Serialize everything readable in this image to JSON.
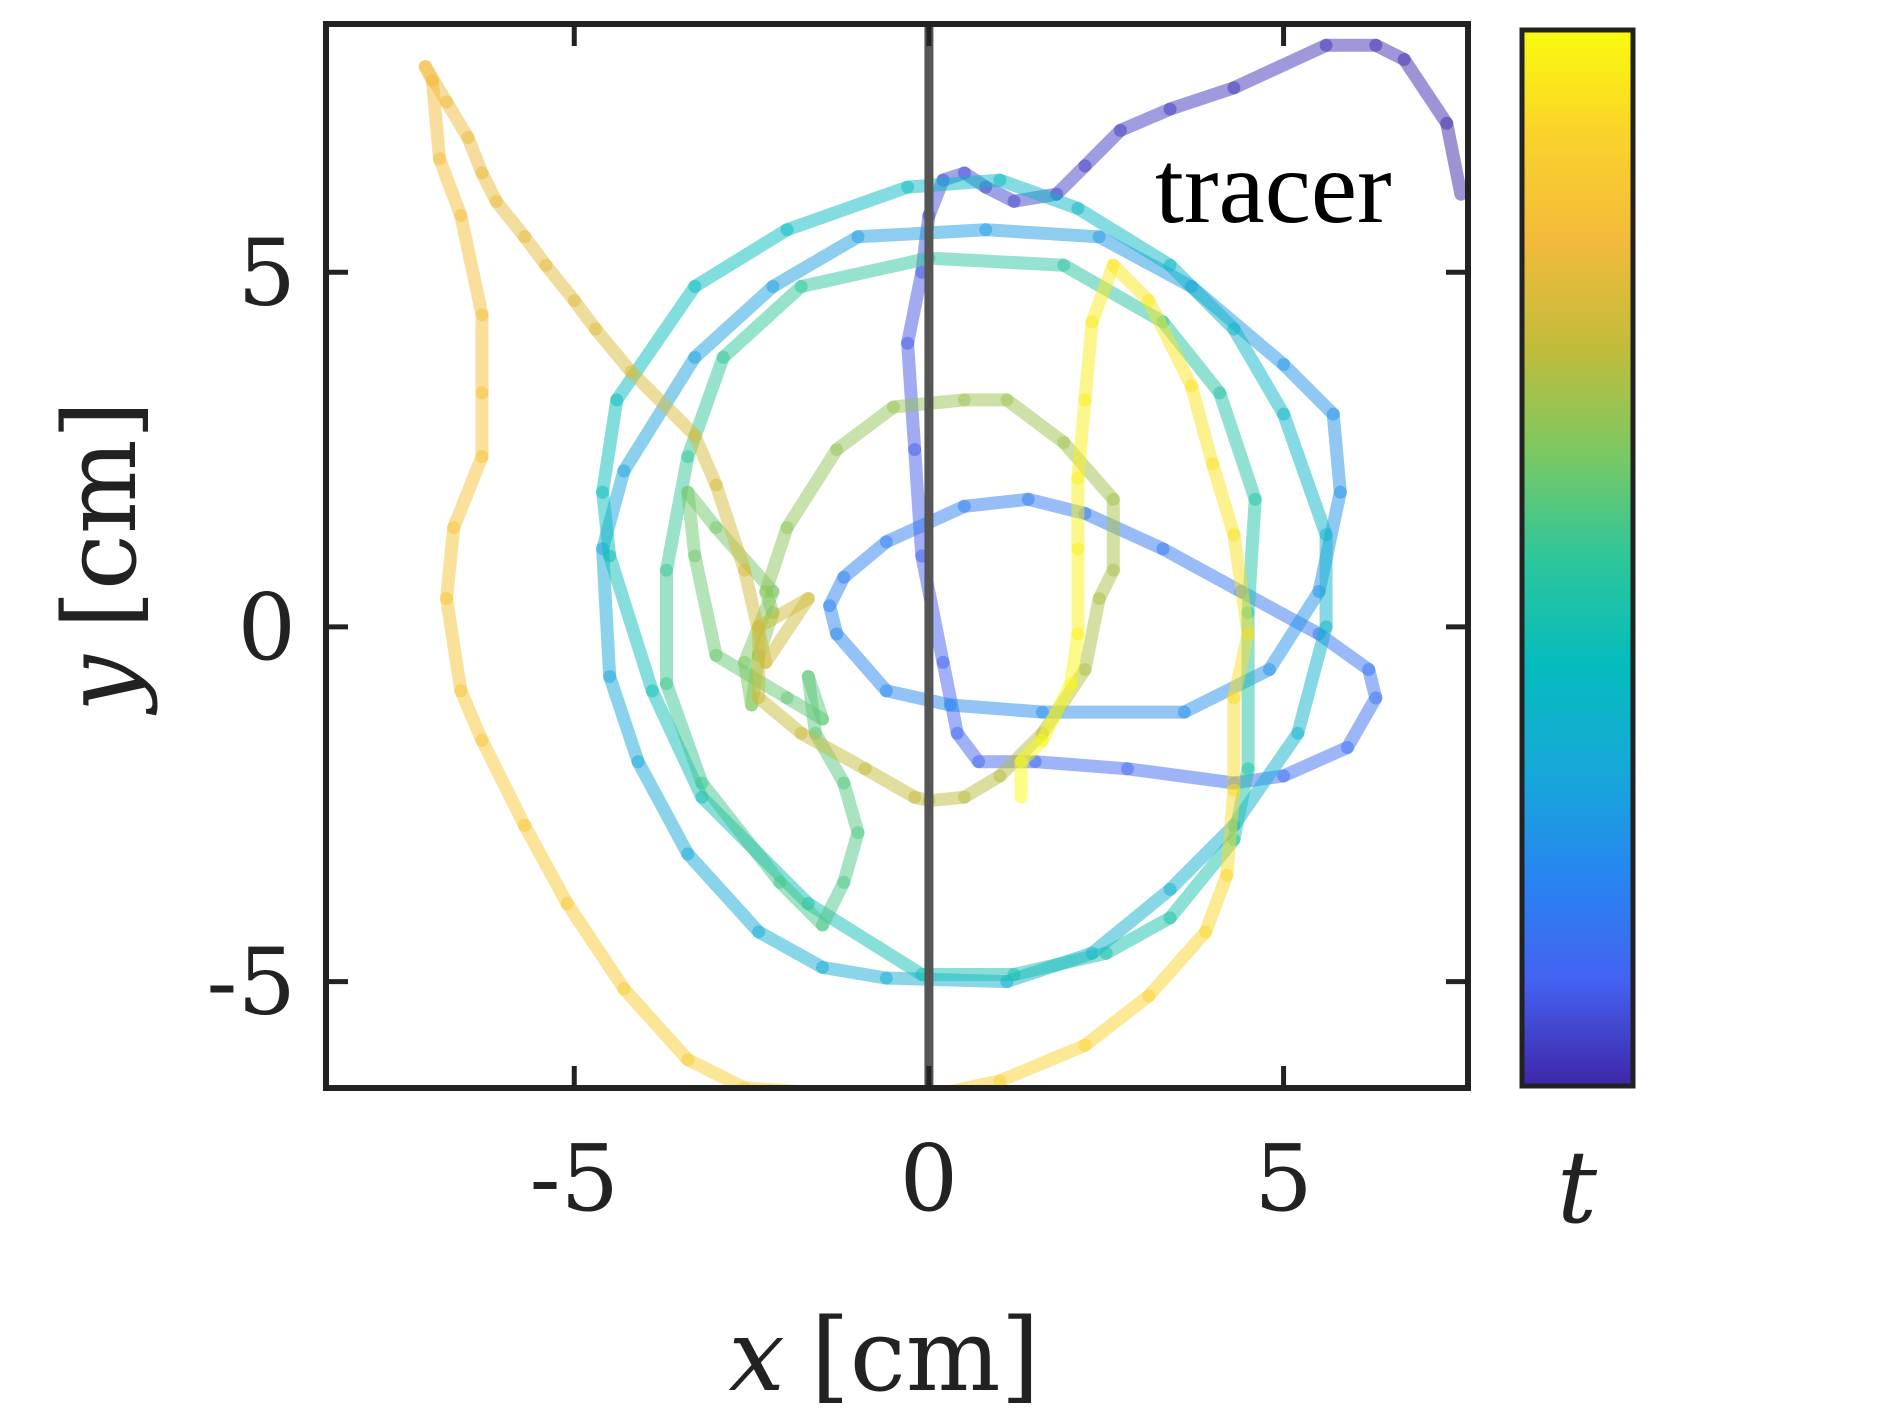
{
  "chart_data": {
    "type": "line",
    "xlabel": {
      "var": "x",
      "unit": "[cm]"
    },
    "ylabel": {
      "var": "y",
      "unit": "[cm]"
    },
    "xlim": [
      -8.5,
      7.6
    ],
    "ylim": [
      -6.5,
      8.5
    ],
    "xticks": [
      -5,
      0,
      5
    ],
    "yticks": [
      -5,
      0,
      5
    ],
    "xtick_labels": [
      "-5",
      "0",
      "5"
    ],
    "ytick_labels": [
      "-5",
      "0",
      "5"
    ],
    "grid": false,
    "annotation": "tracer",
    "colorbar": {
      "label": "t",
      "colors": [
        "#3e26a8",
        "#4462f1",
        "#2786f0",
        "#16a9d8",
        "#05bcbd",
        "#2ec69b",
        "#7cc862",
        "#c2bc3a",
        "#f3ba3c",
        "#fad22b",
        "#f9fb0e"
      ]
    },
    "vertical_line": {
      "x": 0,
      "color": "#555555"
    },
    "series": [
      {
        "line_opacity": 0.5,
        "points": [
          [
            7.5,
            6.1
          ],
          [
            7.3,
            7.1
          ],
          [
            6.7,
            8.0
          ],
          [
            6.3,
            8.2
          ],
          [
            5.6,
            8.2
          ],
          [
            4.3,
            7.6
          ],
          [
            3.4,
            7.3
          ],
          [
            2.7,
            7.0
          ],
          [
            2.2,
            6.5
          ],
          [
            1.8,
            6.1
          ],
          [
            1.2,
            6.0
          ],
          [
            0.8,
            6.2
          ],
          [
            0.5,
            6.4
          ],
          [
            0.2,
            6.3
          ],
          [
            0.0,
            5.8
          ],
          [
            -0.1,
            5.0
          ],
          [
            -0.3,
            4.0
          ],
          [
            -0.2,
            2.5
          ],
          [
            -0.1,
            1.0
          ],
          [
            0.2,
            -0.5
          ],
          [
            0.4,
            -1.5
          ],
          [
            0.7,
            -1.9
          ],
          [
            1.5,
            -1.9
          ],
          [
            2.8,
            -2.0
          ],
          [
            4.3,
            -2.2
          ],
          [
            5.0,
            -2.1
          ],
          [
            5.9,
            -1.7
          ],
          [
            6.3,
            -1.0
          ],
          [
            6.2,
            -0.6
          ],
          [
            5.5,
            -0.1
          ],
          [
            4.4,
            0.5
          ],
          [
            3.3,
            1.1
          ],
          [
            2.2,
            1.6
          ],
          [
            1.4,
            1.8
          ],
          [
            0.5,
            1.7
          ],
          [
            -0.6,
            1.2
          ],
          [
            -1.2,
            0.7
          ],
          [
            -1.4,
            0.3
          ],
          [
            -1.3,
            -0.1
          ],
          [
            -0.6,
            -0.9
          ],
          [
            0.3,
            -1.1
          ],
          [
            1.6,
            -1.2
          ],
          [
            3.6,
            -1.2
          ],
          [
            4.8,
            -0.6
          ],
          [
            5.5,
            0.5
          ],
          [
            5.8,
            1.9
          ],
          [
            5.7,
            3.0
          ],
          [
            5.0,
            3.7
          ],
          [
            3.7,
            4.8
          ],
          [
            2.4,
            5.5
          ],
          [
            0.8,
            5.6
          ],
          [
            -1.0,
            5.5
          ],
          [
            -2.2,
            4.8
          ],
          [
            -3.3,
            3.8
          ],
          [
            -4.3,
            2.2
          ],
          [
            -4.6,
            1.1
          ],
          [
            -4.5,
            -0.7
          ],
          [
            -4.1,
            -1.9
          ],
          [
            -3.4,
            -3.2
          ],
          [
            -2.4,
            -4.3
          ],
          [
            -1.5,
            -4.8
          ],
          [
            -0.6,
            -4.95
          ],
          [
            1.1,
            -5.0
          ],
          [
            2.3,
            -4.6
          ],
          [
            3.4,
            -3.7
          ],
          [
            4.3,
            -2.8
          ],
          [
            5.2,
            -1.5
          ],
          [
            5.6,
            0.0
          ],
          [
            5.6,
            1.3
          ],
          [
            5.0,
            3.0
          ],
          [
            4.3,
            4.2
          ],
          [
            3.4,
            5.1
          ],
          [
            2.1,
            5.9
          ],
          [
            1.0,
            6.3
          ],
          [
            -0.3,
            6.2
          ],
          [
            -2.0,
            5.6
          ],
          [
            -3.3,
            4.8
          ],
          [
            -4.4,
            3.2
          ],
          [
            -4.6,
            1.9
          ],
          [
            -4.5,
            1.0
          ],
          [
            -3.9,
            -0.9
          ],
          [
            -3.2,
            -2.4
          ],
          [
            -1.7,
            -3.9
          ],
          [
            -0.1,
            -4.9
          ],
          [
            1.2,
            -4.9
          ],
          [
            2.5,
            -4.6
          ],
          [
            3.4,
            -4.1
          ],
          [
            4.3,
            -3.0
          ],
          [
            4.5,
            -2.0
          ],
          [
            4.5,
            0.2
          ],
          [
            4.6,
            1.8
          ],
          [
            4.1,
            3.3
          ],
          [
            3.3,
            4.3
          ],
          [
            1.9,
            5.1
          ],
          [
            0.0,
            5.2
          ],
          [
            -1.8,
            4.8
          ],
          [
            -2.9,
            3.8
          ],
          [
            -3.4,
            2.4
          ],
          [
            -3.7,
            0.8
          ],
          [
            -3.7,
            -0.8
          ],
          [
            -3.2,
            -2.2
          ],
          [
            -2.1,
            -3.6
          ],
          [
            -1.5,
            -4.2
          ],
          [
            -1.2,
            -3.6
          ],
          [
            -1.0,
            -2.9
          ],
          [
            -1.2,
            -2.2
          ],
          [
            -1.6,
            -1.5
          ],
          [
            -1.7,
            -0.7
          ],
          [
            -1.5,
            -1.3
          ],
          [
            -2.0,
            -1.0
          ],
          [
            -3.0,
            -0.4
          ],
          [
            -3.3,
            1.0
          ],
          [
            -3.4,
            1.9
          ],
          [
            -3.0,
            1.4
          ],
          [
            -2.2,
            0.5
          ],
          [
            -2.6,
            -0.5
          ],
          [
            -2.5,
            -1.1
          ],
          [
            -2.4,
            -0.4
          ],
          [
            -2.2,
            0.2
          ],
          [
            -2.3,
            0.5
          ],
          [
            -2.0,
            1.4
          ],
          [
            -1.3,
            2.5
          ],
          [
            -0.5,
            3.1
          ],
          [
            0.5,
            3.2
          ],
          [
            1.1,
            3.2
          ],
          [
            1.9,
            2.6
          ],
          [
            2.6,
            1.8
          ],
          [
            2.6,
            0.8
          ],
          [
            2.4,
            0.4
          ],
          [
            2.2,
            -0.6
          ],
          [
            1.6,
            -1.5
          ],
          [
            1.0,
            -2.1
          ],
          [
            0.5,
            -2.4
          ],
          [
            0.0,
            -2.45
          ],
          [
            -0.2,
            -2.4
          ],
          [
            -0.9,
            -2.0
          ],
          [
            -1.8,
            -1.5
          ],
          [
            -2.4,
            -1.0
          ],
          [
            -2.4,
            0.0
          ],
          [
            -1.7,
            0.4
          ],
          [
            -2.3,
            -0.5
          ],
          [
            -2.6,
            0.8
          ],
          [
            -3.0,
            2.0
          ],
          [
            -3.3,
            2.7
          ],
          [
            -4.2,
            3.6
          ],
          [
            -4.7,
            4.2
          ],
          [
            -5.0,
            4.6
          ],
          [
            -5.4,
            5.1
          ],
          [
            -5.7,
            5.5
          ],
          [
            -6.1,
            6.0
          ],
          [
            -6.3,
            6.4
          ],
          [
            -6.5,
            6.9
          ],
          [
            -6.8,
            7.4
          ],
          [
            -7.1,
            7.9
          ],
          [
            -7.0,
            7.7
          ],
          [
            -6.9,
            6.6
          ],
          [
            -6.6,
            5.8
          ],
          [
            -6.3,
            4.4
          ],
          [
            -6.3,
            3.3
          ],
          [
            -6.3,
            2.4
          ],
          [
            -6.7,
            1.4
          ],
          [
            -6.8,
            0.4
          ],
          [
            -6.6,
            -0.9
          ],
          [
            -6.3,
            -1.6
          ],
          [
            -5.7,
            -2.8
          ],
          [
            -5.1,
            -3.9
          ],
          [
            -4.3,
            -5.1
          ],
          [
            -3.4,
            -6.1
          ],
          [
            -2.6,
            -6.5
          ],
          [
            -1.0,
            -6.6
          ],
          [
            0.3,
            -6.55
          ],
          [
            1.0,
            -6.4
          ],
          [
            2.2,
            -5.9
          ],
          [
            3.1,
            -5.2
          ],
          [
            3.9,
            -4.3
          ],
          [
            4.2,
            -3.5
          ],
          [
            4.3,
            -2.3
          ],
          [
            4.3,
            -1.0
          ],
          [
            4.5,
            -0.1
          ],
          [
            4.3,
            1.3
          ],
          [
            4.0,
            2.3
          ],
          [
            3.7,
            3.4
          ],
          [
            3.1,
            4.6
          ],
          [
            2.6,
            5.1
          ],
          [
            2.3,
            4.3
          ],
          [
            2.2,
            3.2
          ],
          [
            2.1,
            2.1
          ],
          [
            2.1,
            1.1
          ],
          [
            2.1,
            -0.1
          ],
          [
            2.0,
            -0.8
          ],
          [
            1.6,
            -1.6
          ],
          [
            1.3,
            -1.9
          ],
          [
            1.3,
            -2.4
          ]
        ]
      }
    ]
  }
}
